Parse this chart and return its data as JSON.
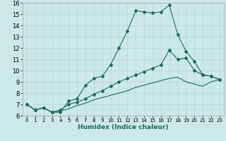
{
  "xlabel": "Humidex (Indice chaleur)",
  "background_color": "#cce8e8",
  "grid_color": "#b8d8d8",
  "line_color": "#1a6b5a",
  "xlim": [
    -0.5,
    23.5
  ],
  "ylim": [
    6,
    16
  ],
  "xticks": [
    0,
    1,
    2,
    3,
    4,
    5,
    6,
    7,
    8,
    9,
    10,
    11,
    12,
    13,
    14,
    15,
    16,
    17,
    18,
    19,
    20,
    21,
    22,
    23
  ],
  "yticks": [
    6,
    7,
    8,
    9,
    10,
    11,
    12,
    13,
    14,
    15,
    16
  ],
  "series1_x": [
    0,
    1,
    2,
    3,
    4,
    5,
    6,
    7,
    8,
    9,
    10,
    11,
    12,
    13,
    14,
    15,
    16,
    17,
    18,
    19,
    20,
    21,
    22,
    23
  ],
  "series1_y": [
    7.0,
    6.5,
    6.7,
    6.3,
    6.3,
    7.3,
    7.5,
    8.7,
    9.3,
    9.5,
    10.5,
    12.0,
    13.5,
    15.3,
    15.2,
    15.1,
    15.2,
    15.8,
    13.2,
    11.7,
    10.8,
    9.6,
    9.5,
    9.2
  ],
  "series2_x": [
    0,
    1,
    2,
    3,
    4,
    5,
    6,
    7,
    8,
    9,
    10,
    11,
    12,
    13,
    14,
    15,
    16,
    17,
    18,
    19,
    20,
    21,
    22,
    23
  ],
  "series2_y": [
    7.0,
    6.5,
    6.7,
    6.3,
    6.5,
    7.0,
    7.2,
    7.5,
    7.9,
    8.2,
    8.6,
    9.0,
    9.3,
    9.6,
    9.9,
    10.2,
    10.5,
    11.8,
    11.0,
    11.1,
    10.0,
    9.6,
    9.5,
    9.2
  ],
  "series3_x": [
    0,
    1,
    2,
    3,
    4,
    5,
    6,
    7,
    8,
    9,
    10,
    11,
    12,
    13,
    14,
    15,
    16,
    17,
    18,
    19,
    20,
    21,
    22,
    23
  ],
  "series3_y": [
    7.0,
    6.5,
    6.7,
    6.3,
    6.4,
    6.6,
    6.9,
    7.1,
    7.4,
    7.6,
    7.8,
    8.0,
    8.2,
    8.5,
    8.7,
    8.9,
    9.1,
    9.3,
    9.4,
    9.0,
    8.8,
    8.6,
    9.0,
    9.2
  ]
}
